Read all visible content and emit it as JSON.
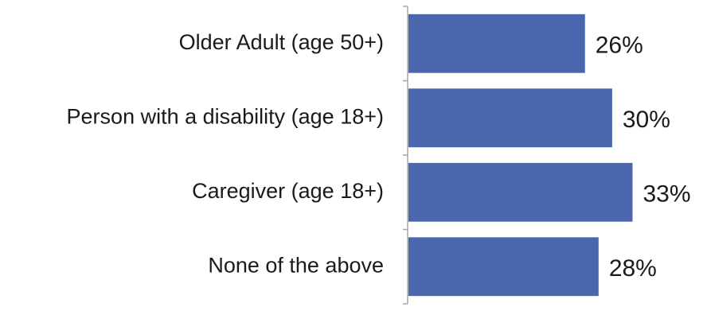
{
  "chart_data": {
    "type": "bar",
    "orientation": "horizontal",
    "categories": [
      "Older Adult (age 50+)",
      "Person with a disability (age 18+)",
      "Caregiver (age 18+)",
      "None of the above"
    ],
    "values": [
      26,
      30,
      33,
      28
    ],
    "value_labels": [
      "26%",
      "30%",
      "33%",
      "28%"
    ],
    "unit": "%",
    "xlim": [
      0,
      34
    ],
    "bar_color": "#4a66ac",
    "axis_color": "#a6a6a6",
    "grid": false,
    "legend": "none"
  }
}
